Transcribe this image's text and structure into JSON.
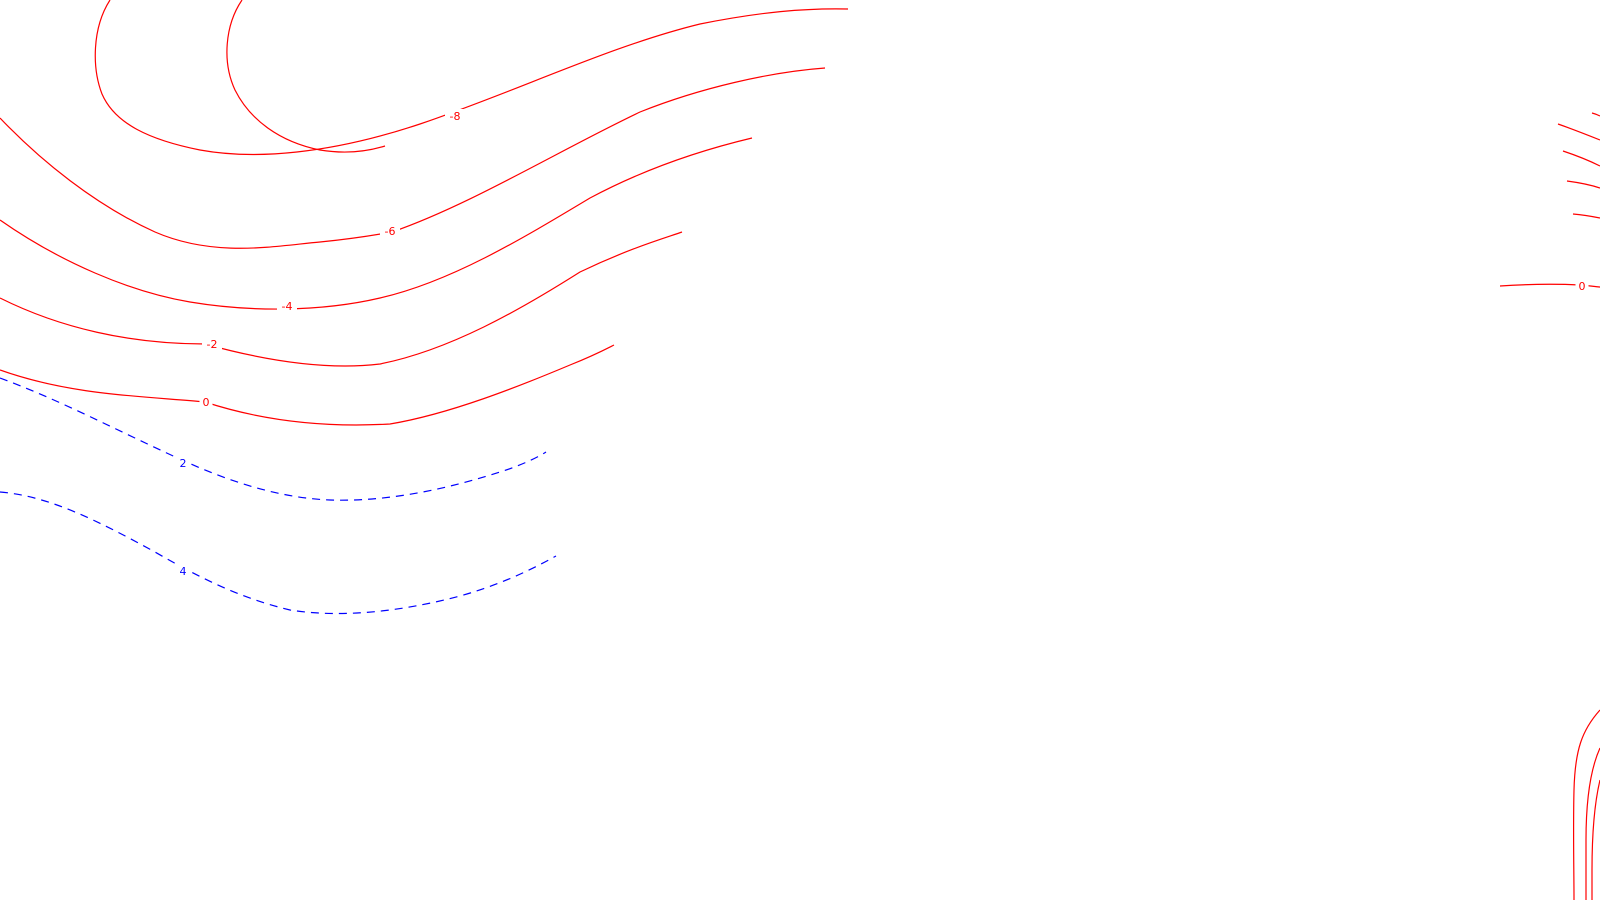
{
  "map": {
    "line_style": {
      "negative_color": "#ff0000",
      "positive_color": "#0000ff",
      "negative_dash": "solid",
      "positive_dash": "dashed"
    },
    "contours": [
      {
        "id": "c-neg8",
        "level": -8,
        "label": "-8",
        "sign": "negative"
      },
      {
        "id": "c-neg6",
        "level": -6,
        "label": "-6",
        "sign": "negative"
      },
      {
        "id": "c-neg4",
        "level": -4,
        "label": "-4",
        "sign": "negative"
      },
      {
        "id": "c-neg2",
        "level": -2,
        "label": "-2",
        "sign": "negative"
      },
      {
        "id": "c-0",
        "level": 0,
        "label": "0",
        "sign": "negative"
      },
      {
        "id": "c-pos2",
        "level": 2,
        "label": "2",
        "sign": "positive"
      },
      {
        "id": "c-pos4",
        "level": 4,
        "label": "4",
        "sign": "positive"
      },
      {
        "id": "c-right-0",
        "level": 0,
        "label": "0",
        "sign": "negative"
      },
      {
        "id": "c-right-a",
        "level": null,
        "label": "",
        "sign": "negative"
      },
      {
        "id": "c-right-b",
        "level": null,
        "label": "",
        "sign": "negative"
      },
      {
        "id": "c-right-c",
        "level": null,
        "label": "",
        "sign": "negative"
      },
      {
        "id": "c-right-d",
        "level": null,
        "label": "",
        "sign": "negative"
      },
      {
        "id": "c-right-e",
        "level": null,
        "label": "",
        "sign": "negative"
      },
      {
        "id": "c-bottom-a",
        "level": null,
        "label": "",
        "sign": "negative"
      },
      {
        "id": "c-bottom-b",
        "level": null,
        "label": "",
        "sign": "negative"
      },
      {
        "id": "c-bottom-c",
        "level": null,
        "label": "",
        "sign": "negative"
      }
    ]
  }
}
